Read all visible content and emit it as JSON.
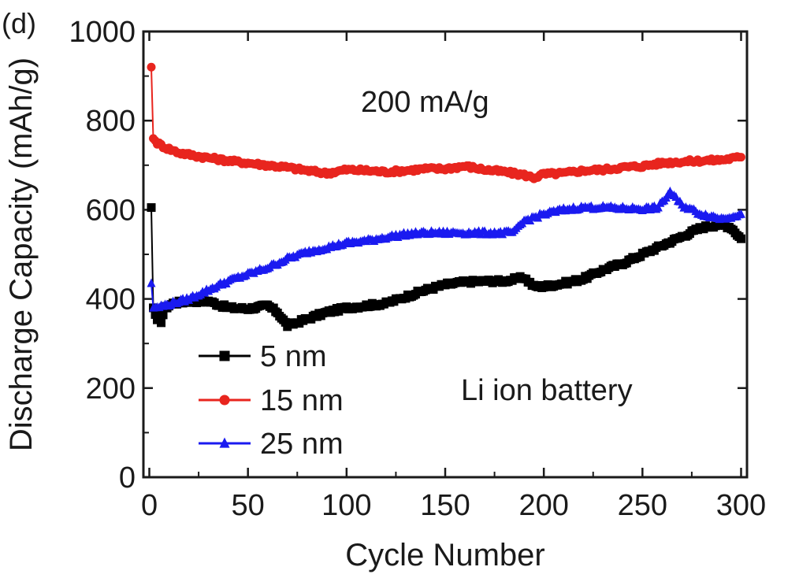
{
  "chart_data": {
    "type": "line",
    "panel_label": "(d)",
    "xlabel": "Cycle Number",
    "ylabel": "Discharge Capacity (mAh/g)",
    "xlim": [
      -3,
      303
    ],
    "ylim": [
      0,
      1000
    ],
    "x_ticks": [
      0,
      50,
      100,
      150,
      200,
      250,
      300
    ],
    "x_tick_labels": [
      "0",
      "50",
      "100",
      "150",
      "200",
      "250",
      "300"
    ],
    "y_ticks": [
      0,
      200,
      400,
      600,
      800,
      1000
    ],
    "y_tick_labels": [
      "0",
      "200",
      "400",
      "600",
      "800",
      "1000"
    ],
    "annotations": [
      "200 mA/g",
      "Li ion battery"
    ],
    "series": [
      {
        "name": "5 nm",
        "color": "#000000",
        "marker": "square",
        "points": [
          [
            1,
            605
          ],
          [
            2,
            380
          ],
          [
            4,
            350
          ],
          [
            6,
            350
          ],
          [
            8,
            380
          ],
          [
            12,
            390
          ],
          [
            20,
            395
          ],
          [
            30,
            395
          ],
          [
            40,
            380
          ],
          [
            50,
            378
          ],
          [
            60,
            385
          ],
          [
            65,
            370
          ],
          [
            70,
            340
          ],
          [
            80,
            355
          ],
          [
            90,
            370
          ],
          [
            100,
            380
          ],
          [
            110,
            385
          ],
          [
            120,
            390
          ],
          [
            130,
            405
          ],
          [
            140,
            420
          ],
          [
            150,
            432
          ],
          [
            160,
            438
          ],
          [
            170,
            440
          ],
          [
            180,
            440
          ],
          [
            190,
            448
          ],
          [
            195,
            428
          ],
          [
            200,
            428
          ],
          [
            210,
            435
          ],
          [
            220,
            445
          ],
          [
            230,
            465
          ],
          [
            240,
            480
          ],
          [
            250,
            500
          ],
          [
            260,
            520
          ],
          [
            270,
            540
          ],
          [
            280,
            560
          ],
          [
            290,
            568
          ],
          [
            295,
            560
          ],
          [
            300,
            535
          ]
        ]
      },
      {
        "name": "15 nm",
        "color": "#e8251e",
        "marker": "circle",
        "points": [
          [
            1,
            920
          ],
          [
            2,
            760
          ],
          [
            4,
            750
          ],
          [
            8,
            740
          ],
          [
            15,
            728
          ],
          [
            25,
            720
          ],
          [
            40,
            710
          ],
          [
            50,
            705
          ],
          [
            60,
            700
          ],
          [
            70,
            695
          ],
          [
            80,
            688
          ],
          [
            90,
            682
          ],
          [
            100,
            690
          ],
          [
            110,
            688
          ],
          [
            120,
            685
          ],
          [
            130,
            688
          ],
          [
            140,
            692
          ],
          [
            150,
            692
          ],
          [
            160,
            698
          ],
          [
            170,
            690
          ],
          [
            180,
            685
          ],
          [
            190,
            678
          ],
          [
            195,
            672
          ],
          [
            200,
            680
          ],
          [
            210,
            682
          ],
          [
            220,
            688
          ],
          [
            230,
            690
          ],
          [
            240,
            695
          ],
          [
            250,
            698
          ],
          [
            260,
            705
          ],
          [
            270,
            708
          ],
          [
            280,
            710
          ],
          [
            290,
            712
          ],
          [
            300,
            718
          ]
        ]
      },
      {
        "name": "25 nm",
        "color": "#1a1af0",
        "marker": "triangle",
        "points": [
          [
            1,
            435
          ],
          [
            2,
            380
          ],
          [
            5,
            382
          ],
          [
            10,
            388
          ],
          [
            20,
            400
          ],
          [
            30,
            420
          ],
          [
            40,
            440
          ],
          [
            50,
            455
          ],
          [
            60,
            470
          ],
          [
            70,
            490
          ],
          [
            80,
            505
          ],
          [
            90,
            515
          ],
          [
            100,
            525
          ],
          [
            110,
            530
          ],
          [
            120,
            538
          ],
          [
            130,
            545
          ],
          [
            140,
            548
          ],
          [
            150,
            548
          ],
          [
            160,
            548
          ],
          [
            170,
            548
          ],
          [
            180,
            548
          ],
          [
            185,
            550
          ],
          [
            190,
            575
          ],
          [
            200,
            590
          ],
          [
            210,
            600
          ],
          [
            220,
            605
          ],
          [
            230,
            605
          ],
          [
            240,
            603
          ],
          [
            250,
            602
          ],
          [
            258,
            605
          ],
          [
            264,
            640
          ],
          [
            270,
            610
          ],
          [
            280,
            590
          ],
          [
            290,
            580
          ],
          [
            300,
            590
          ]
        ]
      }
    ]
  }
}
